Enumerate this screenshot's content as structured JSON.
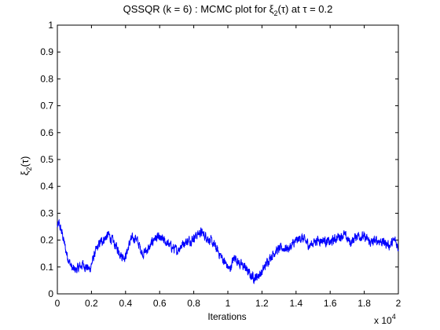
{
  "chart_data": {
    "type": "line",
    "title": {
      "prefix": "QSSQR (k = 6) : MCMC plot for ",
      "symbol": "ξ",
      "sub": "2",
      "mid": "(τ) at τ = 0.2"
    },
    "xlabel": "Iterations",
    "ylabel": {
      "symbol": "ξ",
      "sub": "2",
      "rest": "(τ)"
    },
    "x_multiplier": {
      "base": "x 10",
      "exp": "4"
    },
    "xlim": [
      0,
      2
    ],
    "ylim": [
      0,
      1
    ],
    "xticks": [
      "0",
      "0.2",
      "0.4",
      "0.6",
      "0.8",
      "1",
      "1.2",
      "1.4",
      "1.6",
      "1.8",
      "2"
    ],
    "yticks": [
      "0",
      "0.1",
      "0.2",
      "0.3",
      "0.4",
      "0.5",
      "0.6",
      "0.7",
      "0.8",
      "0.9",
      "1"
    ],
    "grid": false,
    "series": [
      {
        "color": "#0000ff",
        "anchors": [
          [
            0.0,
            0.25
          ],
          [
            0.01,
            0.26
          ],
          [
            0.03,
            0.22
          ],
          [
            0.05,
            0.16
          ],
          [
            0.07,
            0.12
          ],
          [
            0.09,
            0.09
          ],
          [
            0.11,
            0.09
          ],
          [
            0.15,
            0.11
          ],
          [
            0.19,
            0.09
          ],
          [
            0.22,
            0.15
          ],
          [
            0.25,
            0.19
          ],
          [
            0.3,
            0.22
          ],
          [
            0.34,
            0.18
          ],
          [
            0.38,
            0.14
          ],
          [
            0.4,
            0.14
          ],
          [
            0.43,
            0.2
          ],
          [
            0.46,
            0.21
          ],
          [
            0.5,
            0.15
          ],
          [
            0.54,
            0.17
          ],
          [
            0.57,
            0.21
          ],
          [
            0.62,
            0.2
          ],
          [
            0.66,
            0.18
          ],
          [
            0.7,
            0.16
          ],
          [
            0.74,
            0.19
          ],
          [
            0.78,
            0.2
          ],
          [
            0.84,
            0.23
          ],
          [
            0.88,
            0.21
          ],
          [
            0.92,
            0.18
          ],
          [
            0.95,
            0.15
          ],
          [
            0.98,
            0.12
          ],
          [
            1.01,
            0.09
          ],
          [
            1.04,
            0.14
          ],
          [
            1.07,
            0.11
          ],
          [
            1.1,
            0.1
          ],
          [
            1.13,
            0.07
          ],
          [
            1.16,
            0.06
          ],
          [
            1.2,
            0.08
          ],
          [
            1.24,
            0.13
          ],
          [
            1.28,
            0.16
          ],
          [
            1.32,
            0.17
          ],
          [
            1.36,
            0.17
          ],
          [
            1.39,
            0.19
          ],
          [
            1.43,
            0.21
          ],
          [
            1.48,
            0.18
          ],
          [
            1.52,
            0.2
          ],
          [
            1.56,
            0.2
          ],
          [
            1.6,
            0.19
          ],
          [
            1.64,
            0.21
          ],
          [
            1.68,
            0.22
          ],
          [
            1.72,
            0.19
          ],
          [
            1.76,
            0.22
          ],
          [
            1.8,
            0.21
          ],
          [
            1.84,
            0.19
          ],
          [
            1.88,
            0.2
          ],
          [
            1.92,
            0.19
          ],
          [
            1.95,
            0.18
          ],
          [
            1.98,
            0.2
          ],
          [
            2.0,
            0.17
          ]
        ],
        "points": 2000,
        "noise": 0.028
      }
    ]
  }
}
